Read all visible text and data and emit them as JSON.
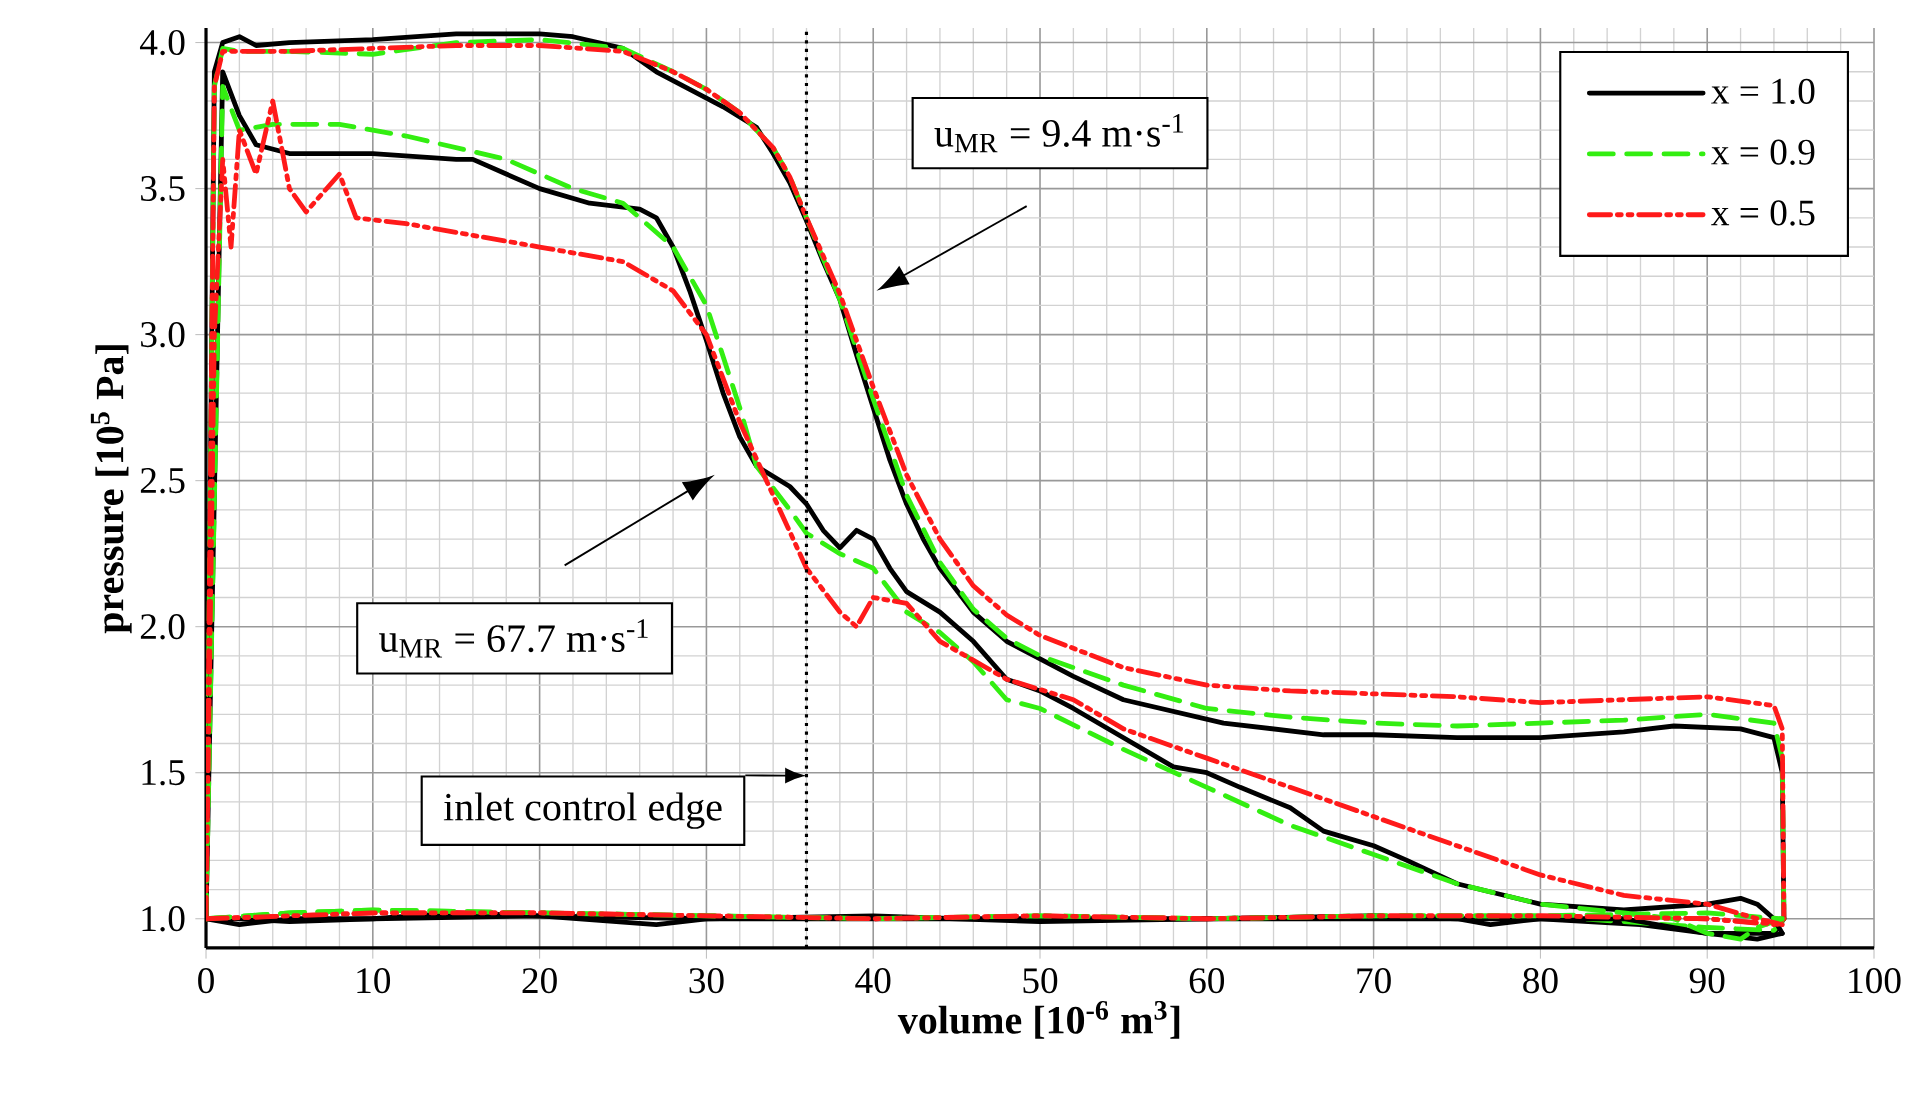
{
  "chart_data": {
    "type": "line",
    "xlabel": "volume [10$^{-6}$ m$^{3}$]",
    "ylabel": "pressure [10$^{5}$ Pa]",
    "xlim": [
      0,
      100
    ],
    "ylim": [
      0.9,
      4.05
    ],
    "xticks": [
      0,
      10,
      20,
      30,
      40,
      50,
      60,
      70,
      80,
      90,
      100
    ],
    "yticks": [
      {
        "value": 1,
        "label": "1.0"
      },
      {
        "value": 1.5,
        "label": "1.5"
      },
      {
        "value": 2,
        "label": "2.0"
      },
      {
        "value": 2.5,
        "label": "2.5"
      },
      {
        "value": 3,
        "label": "3.0"
      },
      {
        "value": 3.5,
        "label": "3.5"
      },
      {
        "value": 4,
        "label": "4.0"
      }
    ],
    "grid": true,
    "legend": "top right",
    "series": [
      {
        "name": "x = 1.0",
        "color": "#000000",
        "line_style": "solid",
        "x": [
          0,
          0.5,
          1,
          2,
          3,
          5,
          10,
          15,
          20,
          22,
          25,
          27,
          29,
          31,
          33,
          34,
          35,
          36,
          37,
          38,
          39,
          40,
          41,
          42,
          43,
          44,
          46,
          48,
          50,
          52,
          55,
          61,
          67,
          70,
          75,
          80,
          85,
          88,
          92,
          94,
          94.5,
          94.6
        ],
        "values": [
          1.0,
          3.9,
          4.0,
          4.02,
          3.99,
          4.0,
          4.01,
          4.03,
          4.03,
          4.02,
          3.98,
          3.9,
          3.84,
          3.78,
          3.71,
          3.62,
          3.52,
          3.39,
          3.25,
          3.12,
          2.93,
          2.75,
          2.57,
          2.42,
          2.3,
          2.2,
          2.05,
          1.95,
          1.89,
          1.83,
          1.75,
          1.67,
          1.63,
          1.63,
          1.62,
          1.62,
          1.64,
          1.66,
          1.65,
          1.62,
          1.5,
          1.0
        ]
      },
      {
        "name": "x = 0.9",
        "color": "#33ee11",
        "line_style": "dashed",
        "x": [
          0,
          0.5,
          1,
          2,
          5,
          10,
          15,
          20,
          25,
          28,
          30,
          32,
          34,
          35,
          36,
          37,
          38,
          39,
          40,
          42,
          44,
          46,
          48,
          50,
          55,
          60,
          65,
          70,
          75,
          80,
          85,
          90,
          94,
          94.5,
          94.6
        ],
        "values": [
          1.0,
          3.85,
          3.98,
          3.97,
          3.97,
          3.96,
          4.0,
          4.01,
          3.98,
          3.9,
          3.84,
          3.76,
          3.64,
          3.54,
          3.4,
          3.26,
          3.12,
          2.95,
          2.78,
          2.45,
          2.22,
          2.06,
          1.96,
          1.9,
          1.8,
          1.72,
          1.69,
          1.67,
          1.66,
          1.67,
          1.68,
          1.7,
          1.67,
          1.55,
          1.0
        ]
      },
      {
        "name": "x = 0.5",
        "color": "#ff1a1a",
        "line_style": "dashdotdot",
        "x": [
          0,
          0.5,
          1,
          2,
          5,
          10,
          15,
          20,
          25,
          28,
          30,
          32,
          34,
          35,
          36,
          37,
          38,
          39,
          40,
          42,
          44,
          46,
          48,
          50,
          55,
          60,
          65,
          70,
          75,
          80,
          85,
          90,
          94,
          94.5,
          94.6
        ],
        "values": [
          1.0,
          3.85,
          3.97,
          3.97,
          3.97,
          3.98,
          3.99,
          3.99,
          3.97,
          3.9,
          3.84,
          3.76,
          3.64,
          3.54,
          3.4,
          3.27,
          3.14,
          2.98,
          2.82,
          2.52,
          2.3,
          2.14,
          2.04,
          1.97,
          1.86,
          1.8,
          1.78,
          1.77,
          1.76,
          1.74,
          1.75,
          1.76,
          1.73,
          1.65,
          1.0
        ]
      },
      {
        "color": "#000000",
        "line_style": "solid",
        "x": [
          0,
          2,
          5,
          10,
          15,
          20,
          27,
          30,
          40,
          45,
          50,
          60,
          70,
          80,
          86,
          90,
          94,
          94.6
        ],
        "values": [
          1.0,
          1.0,
          0.99,
          1.0,
          1.02,
          1.01,
          0.98,
          1.0,
          1.01,
          1.0,
          0.99,
          1.0,
          1.0,
          1.0,
          0.98,
          0.95,
          0.95,
          1.0
        ]
      },
      {
        "color": "#33ee11",
        "line_style": "dashed",
        "x": [
          0,
          5,
          10,
          20,
          30,
          40,
          50,
          60,
          70,
          80,
          90,
          94,
          94.6
        ],
        "values": [
          1.0,
          1.02,
          1.03,
          1.02,
          1.01,
          1.0,
          1.01,
          1.0,
          1.01,
          1.01,
          0.97,
          0.96,
          1.0
        ]
      },
      {
        "color": "#ff1a1a",
        "line_style": "dashdotdot",
        "x": [
          0,
          5,
          10,
          20,
          30,
          40,
          50,
          60,
          70,
          80,
          90,
          94,
          94.6
        ],
        "values": [
          1.0,
          1.01,
          1.02,
          1.02,
          1.01,
          1.0,
          1.01,
          1.0,
          1.01,
          1.01,
          1.0,
          0.98,
          1.0
        ]
      },
      {
        "color": "#000000",
        "line_style": "solid",
        "x": [
          0,
          1,
          2,
          3,
          5,
          10,
          15,
          16,
          18,
          20,
          23,
          26,
          27,
          28,
          29,
          30,
          31,
          32,
          33,
          35,
          36,
          37,
          38,
          39,
          40,
          41,
          42,
          44,
          46,
          48,
          50,
          52,
          55,
          58,
          60,
          62,
          65,
          67,
          70,
          72,
          75,
          80,
          85,
          90,
          92,
          93,
          94,
          94.5
        ],
        "values": [
          1.0,
          3.9,
          3.75,
          3.65,
          3.62,
          3.62,
          3.6,
          3.6,
          3.55,
          3.5,
          3.45,
          3.43,
          3.4,
          3.3,
          3.15,
          2.98,
          2.8,
          2.65,
          2.55,
          2.48,
          2.42,
          2.33,
          2.27,
          2.33,
          2.3,
          2.2,
          2.12,
          2.05,
          1.95,
          1.82,
          1.78,
          1.72,
          1.62,
          1.52,
          1.5,
          1.45,
          1.38,
          1.3,
          1.25,
          1.2,
          1.12,
          1.05,
          1.03,
          1.05,
          1.07,
          1.05,
          1.0,
          0.95
        ]
      },
      {
        "color": "#000000",
        "line_style": "solid",
        "x": [
          0,
          2,
          5,
          10,
          20,
          30,
          40,
          50,
          60,
          70,
          75,
          77,
          80,
          85,
          90,
          93,
          94.5
        ],
        "values": [
          1.0,
          0.98,
          1.0,
          1.0,
          1.01,
          1.0,
          1.0,
          1.0,
          1.0,
          1.01,
          1.0,
          0.98,
          1.0,
          1.0,
          0.95,
          0.93,
          0.95
        ]
      },
      {
        "color": "#33ee11",
        "line_style": "dashed",
        "x": [
          0,
          1,
          2,
          4,
          8,
          10,
          12,
          18,
          22,
          25,
          28,
          30,
          32,
          33,
          35,
          36,
          38,
          40,
          42,
          44,
          46,
          48,
          50,
          55,
          60,
          65,
          70,
          75,
          80,
          85,
          88,
          90,
          92,
          93,
          94.5
        ],
        "values": [
          1.0,
          3.85,
          3.7,
          3.72,
          3.72,
          3.7,
          3.68,
          3.6,
          3.5,
          3.45,
          3.3,
          3.1,
          2.75,
          2.55,
          2.4,
          2.32,
          2.25,
          2.2,
          2.05,
          1.98,
          1.88,
          1.75,
          1.72,
          1.58,
          1.45,
          1.32,
          1.22,
          1.12,
          1.05,
          1.02,
          1.0,
          0.95,
          0.93,
          0.97,
          1.0
        ]
      },
      {
        "color": "#33ee11",
        "line_style": "dashed",
        "x": [
          0,
          5,
          10,
          20,
          30,
          40,
          50,
          60,
          70,
          80,
          90,
          94.5
        ],
        "values": [
          1.0,
          1.02,
          1.03,
          1.02,
          1.01,
          1.0,
          1.01,
          1.0,
          1.01,
          1.01,
          1.02,
          1.0
        ]
      },
      {
        "color": "#ff1a1a",
        "line_style": "dashdotdot",
        "x": [
          0,
          0.5,
          1,
          1.5,
          2,
          3,
          4,
          5,
          6,
          8,
          9,
          12,
          20,
          25,
          28,
          30,
          32,
          34,
          36,
          38,
          39,
          40,
          42,
          44,
          48,
          52,
          55,
          60,
          65,
          70,
          75,
          80,
          85,
          90,
          93,
          94.5
        ],
        "values": [
          1.0,
          3.0,
          3.6,
          3.3,
          3.7,
          3.55,
          3.8,
          3.5,
          3.42,
          3.55,
          3.4,
          3.38,
          3.3,
          3.25,
          3.15,
          3.0,
          2.7,
          2.45,
          2.2,
          2.05,
          2.0,
          2.1,
          2.08,
          1.95,
          1.82,
          1.75,
          1.65,
          1.55,
          1.45,
          1.35,
          1.25,
          1.15,
          1.08,
          1.05,
          1.0,
          0.98
        ]
      },
      {
        "color": "#ff1a1a",
        "line_style": "dashdotdot",
        "x": [
          0,
          5,
          10,
          20,
          30,
          40,
          50,
          60,
          70,
          80,
          90,
          94.5
        ],
        "values": [
          1.0,
          1.01,
          1.02,
          1.02,
          1.01,
          1.0,
          1.01,
          1.0,
          1.01,
          1.01,
          1.0,
          0.98
        ]
      }
    ],
    "ref_lines": [
      {
        "axis": "x",
        "value": 36,
        "label": "inlet control edge",
        "color": "#000000",
        "line_style": "dotted"
      }
    ],
    "annotations": [
      "u$_{MR}$ = 9.4 m·s$^{-1}$",
      "u$_{MR}$ = 67.7 m·s$^{-1}$"
    ]
  }
}
